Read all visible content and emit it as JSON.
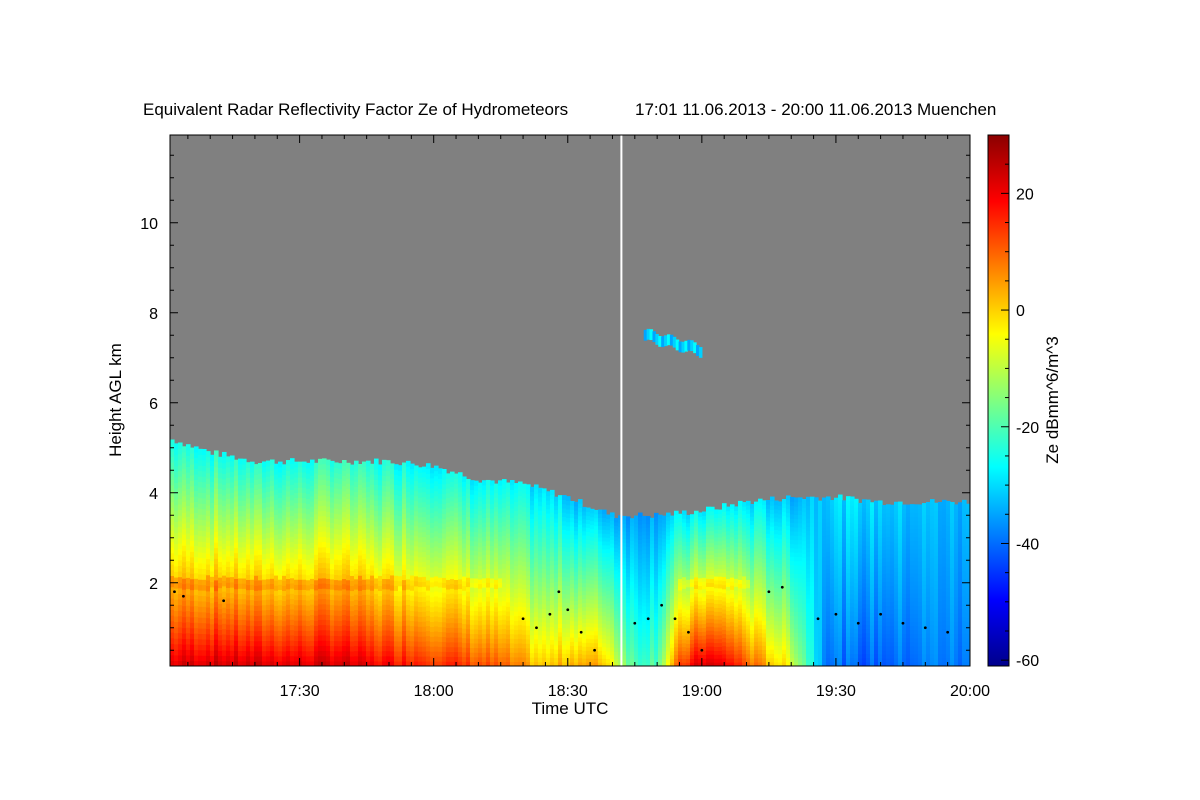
{
  "chart_data": {
    "type": "heatmap",
    "title": "Equivalent Radar Reflectivity Factor Ze of Hydrometeors",
    "subtitle": "17:01 11.06.2013 - 20:00 11.06.2013 Muenchen",
    "xlabel": "Time UTC",
    "ylabel": "Height AGL km",
    "x_range_min": [
      1021,
      1200
    ],
    "ylim": [
      0.15,
      11.95
    ],
    "x_ticks": [
      {
        "value": 1050,
        "label": "17:30"
      },
      {
        "value": 1080,
        "label": "18:00"
      },
      {
        "value": 1110,
        "label": "18:30"
      },
      {
        "value": 1140,
        "label": "19:00"
      },
      {
        "value": 1170,
        "label": "19:30"
      },
      {
        "value": 1200,
        "label": "20:00"
      }
    ],
    "y_ticks": [
      {
        "value": 2,
        "label": "2"
      },
      {
        "value": 4,
        "label": "4"
      },
      {
        "value": 6,
        "label": "6"
      },
      {
        "value": 8,
        "label": "8"
      },
      {
        "value": 10,
        "label": "10"
      }
    ],
    "colorbar": {
      "label": "Ze dBmm^6/m^3",
      "range": [
        -61,
        30
      ],
      "ticks": [
        {
          "value": 20,
          "label": "20"
        },
        {
          "value": 0,
          "label": "0"
        },
        {
          "value": -20,
          "label": "-20"
        },
        {
          "value": -40,
          "label": "-40"
        },
        {
          "value": -60,
          "label": "-60"
        }
      ],
      "colors": [
        "#8b0000",
        "#ff0000",
        "#ff8000",
        "#ffff00",
        "#80ff80",
        "#00ffff",
        "#0080ff",
        "#0000ff",
        "#00008b"
      ]
    },
    "no_data_color": "#808080",
    "data_gap_minute": 1122,
    "echo_top_km": [
      {
        "t": 1021,
        "h": 5.2
      },
      {
        "t": 1030,
        "h": 4.9
      },
      {
        "t": 1040,
        "h": 4.7
      },
      {
        "t": 1050,
        "h": 4.7
      },
      {
        "t": 1060,
        "h": 4.7
      },
      {
        "t": 1070,
        "h": 4.7
      },
      {
        "t": 1080,
        "h": 4.6
      },
      {
        "t": 1090,
        "h": 4.3
      },
      {
        "t": 1100,
        "h": 4.2
      },
      {
        "t": 1110,
        "h": 3.9
      },
      {
        "t": 1115,
        "h": 3.7
      },
      {
        "t": 1120,
        "h": 3.5
      },
      {
        "t": 1125,
        "h": 3.5
      },
      {
        "t": 1130,
        "h": 3.5
      },
      {
        "t": 1140,
        "h": 3.6
      },
      {
        "t": 1150,
        "h": 3.8
      },
      {
        "t": 1160,
        "h": 3.9
      },
      {
        "t": 1170,
        "h": 3.9
      },
      {
        "t": 1180,
        "h": 3.8
      },
      {
        "t": 1190,
        "h": 3.8
      },
      {
        "t": 1200,
        "h": 3.8
      }
    ],
    "columns": [
      {
        "t": 1021,
        "base_dbz": 22,
        "top_dbz": -25
      },
      {
        "t": 1030,
        "base_dbz": 24,
        "top_dbz": -25
      },
      {
        "t": 1040,
        "base_dbz": 23,
        "top_dbz": -25
      },
      {
        "t": 1050,
        "base_dbz": 22,
        "top_dbz": -26
      },
      {
        "t": 1058,
        "base_dbz": 24,
        "top_dbz": -22
      },
      {
        "t": 1066,
        "base_dbz": 20,
        "top_dbz": -25
      },
      {
        "t": 1075,
        "base_dbz": 18,
        "top_dbz": -26
      },
      {
        "t": 1085,
        "base_dbz": 15,
        "top_dbz": -27
      },
      {
        "t": 1095,
        "base_dbz": 10,
        "top_dbz": -28
      },
      {
        "t": 1105,
        "base_dbz": 0,
        "top_dbz": -30
      },
      {
        "t": 1112,
        "base_dbz": 5,
        "top_dbz": -32
      },
      {
        "t": 1118,
        "base_dbz": 3,
        "top_dbz": -33
      },
      {
        "t": 1125,
        "base_dbz": -20,
        "top_dbz": -35
      },
      {
        "t": 1130,
        "base_dbz": -18,
        "top_dbz": -34
      },
      {
        "t": 1135,
        "base_dbz": 12,
        "top_dbz": -30
      },
      {
        "t": 1140,
        "base_dbz": 24,
        "top_dbz": -28
      },
      {
        "t": 1146,
        "base_dbz": 20,
        "top_dbz": -28
      },
      {
        "t": 1152,
        "base_dbz": 8,
        "top_dbz": -30
      },
      {
        "t": 1160,
        "base_dbz": -5,
        "top_dbz": -33
      },
      {
        "t": 1168,
        "base_dbz": -38,
        "top_dbz": -30
      },
      {
        "t": 1175,
        "base_dbz": -42,
        "top_dbz": -30
      },
      {
        "t": 1185,
        "base_dbz": -40,
        "top_dbz": -32
      },
      {
        "t": 1193,
        "base_dbz": -38,
        "top_dbz": -33
      },
      {
        "t": 1200,
        "base_dbz": -40,
        "top_dbz": -34
      }
    ],
    "bright_band_km": 2.0,
    "cirrus_patch": {
      "t_start": 1127,
      "t_end": 1140,
      "h_center": 7.3,
      "ze_dbz": -35
    },
    "melting_layer_points": [
      {
        "t": 1022,
        "h": 1.8
      },
      {
        "t": 1024,
        "h": 1.7
      },
      {
        "t": 1033,
        "h": 1.6
      },
      {
        "t": 1100,
        "h": 1.2
      },
      {
        "t": 1103,
        "h": 1.0
      },
      {
        "t": 1106,
        "h": 1.3
      },
      {
        "t": 1108,
        "h": 1.8
      },
      {
        "t": 1110,
        "h": 1.4
      },
      {
        "t": 1113,
        "h": 0.9
      },
      {
        "t": 1116,
        "h": 0.5
      },
      {
        "t": 1125,
        "h": 1.1
      },
      {
        "t": 1128,
        "h": 1.2
      },
      {
        "t": 1131,
        "h": 1.5
      },
      {
        "t": 1134,
        "h": 1.2
      },
      {
        "t": 1137,
        "h": 0.9
      },
      {
        "t": 1140,
        "h": 0.5
      },
      {
        "t": 1155,
        "h": 1.8
      },
      {
        "t": 1158,
        "h": 1.9
      },
      {
        "t": 1166,
        "h": 1.2
      },
      {
        "t": 1170,
        "h": 1.3
      },
      {
        "t": 1175,
        "h": 1.1
      },
      {
        "t": 1180,
        "h": 1.3
      },
      {
        "t": 1185,
        "h": 1.1
      },
      {
        "t": 1190,
        "h": 1.0
      },
      {
        "t": 1195,
        "h": 0.9
      }
    ]
  }
}
